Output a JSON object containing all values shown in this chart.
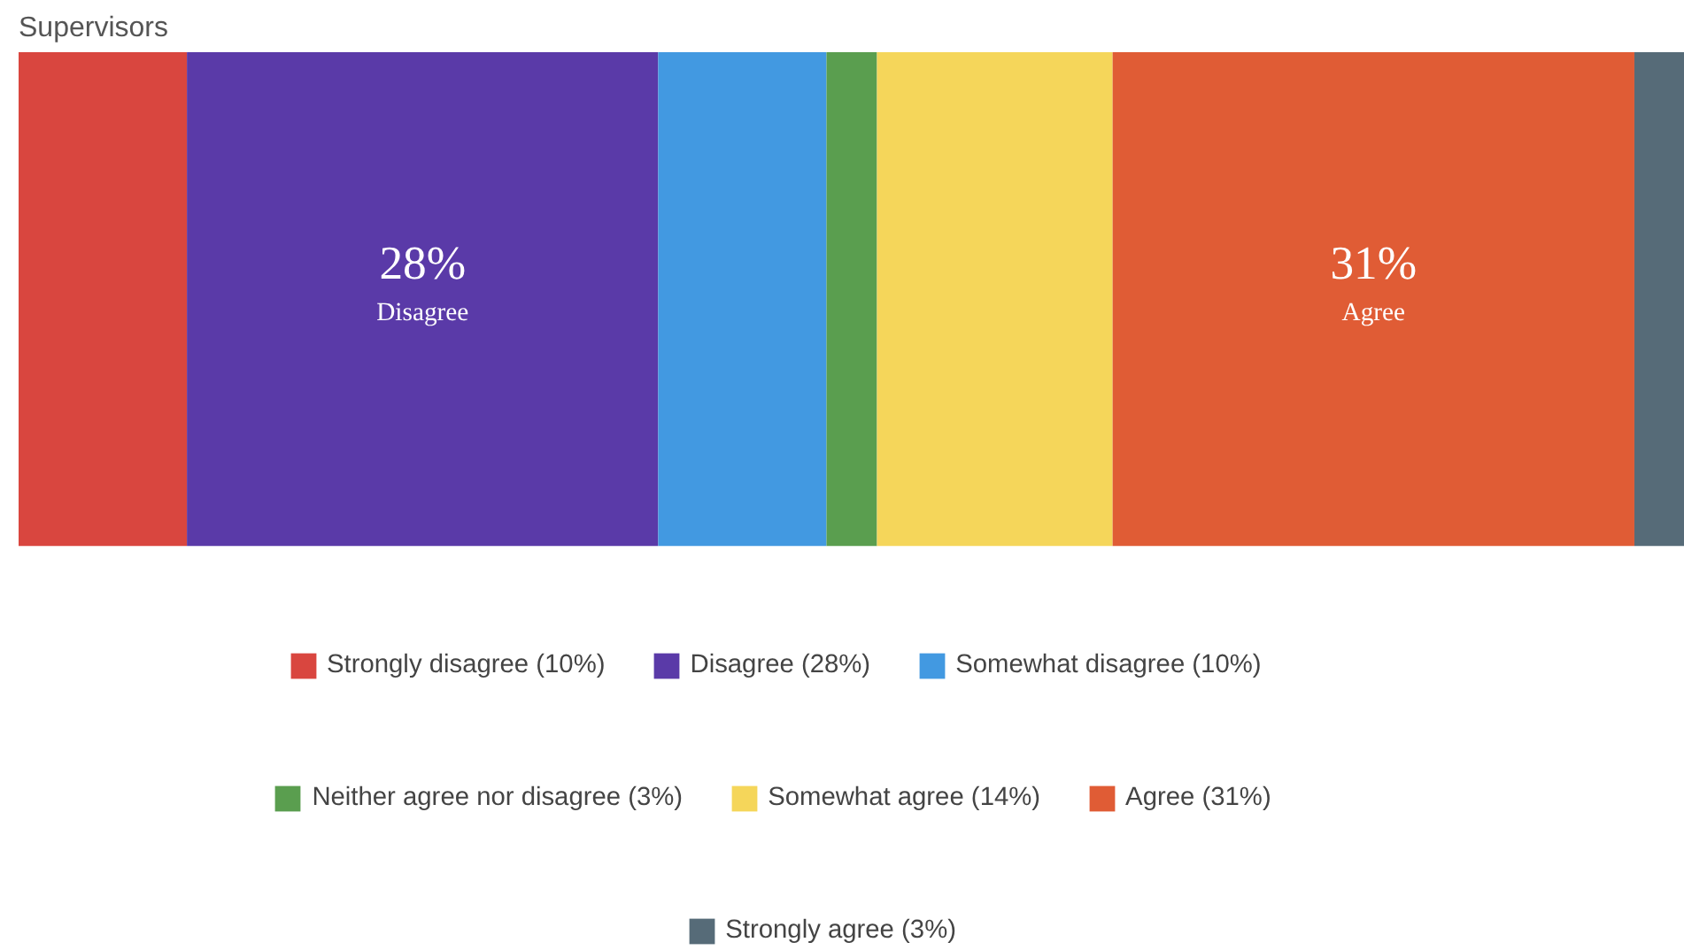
{
  "chart_data": {
    "type": "bar",
    "title": "Supervisors",
    "stacked": true,
    "orientation": "horizontal",
    "categories": [
      null
    ],
    "xlim": [
      0,
      99
    ],
    "tick_labels": false,
    "grid": false,
    "legend": "bottom",
    "series": [
      {
        "name": "Strongly disagree (10%)",
        "color": "#d9463f",
        "values": [
          10
        ]
      },
      {
        "name": "Disagree (28%)",
        "color": "#5a3aa8",
        "values": [
          28
        ],
        "value_labels": [
          "28%\nDisagree"
        ]
      },
      {
        "name": "Somewhat disagree (10%)",
        "color": "#4299e1",
        "values": [
          10
        ]
      },
      {
        "name": "Neither agree nor disagree (3%)",
        "color": "#5a9e4f",
        "values": [
          3
        ]
      },
      {
        "name": "Somewhat agree (14%)",
        "color": "#f5d65a",
        "values": [
          14
        ]
      },
      {
        "name": "Agree (31%)",
        "color": "#e05c35",
        "values": [
          31
        ],
        "value_labels": [
          "31%\nAgree"
        ]
      },
      {
        "name": "Strongly agree (3%)",
        "color": "#566b78",
        "values": [
          3
        ]
      }
    ]
  }
}
